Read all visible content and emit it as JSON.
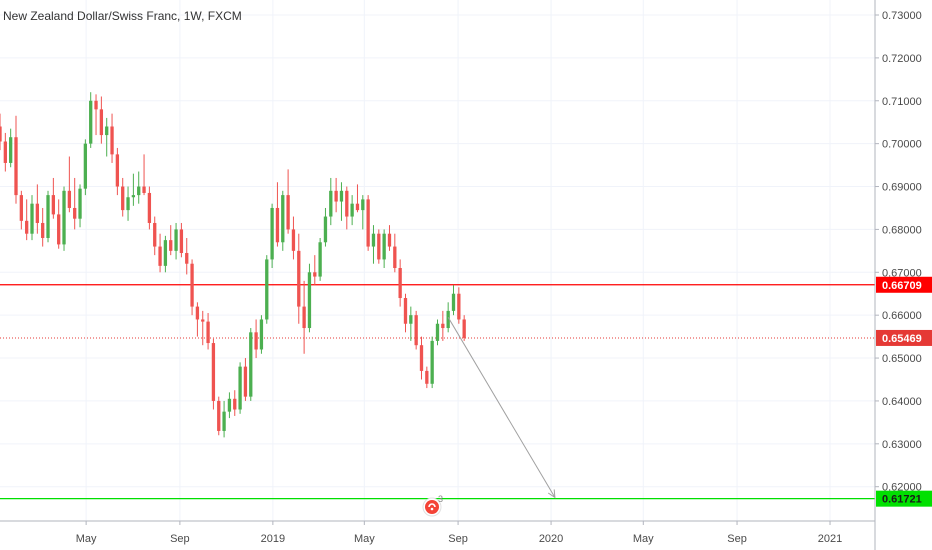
{
  "header": {
    "title": "New Zealand Dollar/Swiss Franc, 1W, FXCM"
  },
  "colors": {
    "up": "#4caf50",
    "down": "#ef5350",
    "resistance": "#ff0000",
    "support": "#00e000",
    "price_line": "#e53935",
    "arrow": "#a0a0a0",
    "grid": "#f0f3fa",
    "text": "#4a4a4a"
  },
  "chart_data": {
    "type": "candlestick",
    "title": "New Zealand Dollar/Swiss Franc, 1W, FXCM",
    "ylim": [
      0.612,
      0.7335
    ],
    "x_range": [
      "2018-01-08",
      "2021-03-01"
    ],
    "y_ticks": [
      "0.73000",
      "0.72000",
      "0.71000",
      "0.70000",
      "0.69000",
      "0.68000",
      "0.67000",
      "0.66000",
      "0.65000",
      "0.64000",
      "0.63000",
      "0.62000"
    ],
    "x_ticks": [
      {
        "label": "May",
        "date": "2018-05-01"
      },
      {
        "label": "Sep",
        "date": "2018-09-01"
      },
      {
        "label": "2019",
        "date": "2019-01-01"
      },
      {
        "label": "May",
        "date": "2019-05-01"
      },
      {
        "label": "Sep",
        "date": "2019-09-01"
      },
      {
        "label": "2020",
        "date": "2020-01-01"
      },
      {
        "label": "May",
        "date": "2020-05-01"
      },
      {
        "label": "Sep",
        "date": "2020-09-01"
      },
      {
        "label": "2021",
        "date": "2021-01-01"
      }
    ],
    "series_start": "2018-01-08",
    "interval": "1W",
    "candles": [
      [
        0.704,
        0.707,
        0.6985,
        0.7005
      ],
      [
        0.7005,
        0.7025,
        0.6935,
        0.6955
      ],
      [
        0.6955,
        0.7035,
        0.6945,
        0.7015
      ],
      [
        0.7015,
        0.7065,
        0.686,
        0.688
      ],
      [
        0.688,
        0.689,
        0.68,
        0.682
      ],
      [
        0.682,
        0.687,
        0.6775,
        0.679
      ],
      [
        0.679,
        0.688,
        0.6775,
        0.686
      ],
      [
        0.686,
        0.6905,
        0.679,
        0.6815
      ],
      [
        0.6815,
        0.685,
        0.676,
        0.678
      ],
      [
        0.678,
        0.689,
        0.677,
        0.688
      ],
      [
        0.688,
        0.692,
        0.6825,
        0.6835
      ],
      [
        0.6835,
        0.687,
        0.6755,
        0.6765
      ],
      [
        0.6765,
        0.69,
        0.675,
        0.689
      ],
      [
        0.689,
        0.697,
        0.684,
        0.685
      ],
      [
        0.685,
        0.692,
        0.68,
        0.6825
      ],
      [
        0.6825,
        0.6905,
        0.6805,
        0.6895
      ],
      [
        0.6895,
        0.701,
        0.688,
        0.7
      ],
      [
        0.7,
        0.712,
        0.699,
        0.71
      ],
      [
        0.71,
        0.7115,
        0.702,
        0.708
      ],
      [
        0.708,
        0.711,
        0.7,
        0.702
      ],
      [
        0.702,
        0.706,
        0.697,
        0.704
      ],
      [
        0.704,
        0.707,
        0.6955,
        0.6975
      ],
      [
        0.6975,
        0.699,
        0.688,
        0.69
      ],
      [
        0.69,
        0.692,
        0.683,
        0.6845
      ],
      [
        0.6845,
        0.69,
        0.682,
        0.6875
      ],
      [
        0.6875,
        0.693,
        0.6855,
        0.688
      ],
      [
        0.688,
        0.6935,
        0.686,
        0.69
      ],
      [
        0.69,
        0.6975,
        0.688,
        0.6885
      ],
      [
        0.6885,
        0.69,
        0.68,
        0.6815
      ],
      [
        0.6815,
        0.683,
        0.674,
        0.676
      ],
      [
        0.676,
        0.679,
        0.67,
        0.6715
      ],
      [
        0.6715,
        0.6785,
        0.67,
        0.6775
      ],
      [
        0.6775,
        0.681,
        0.674,
        0.675
      ],
      [
        0.675,
        0.6815,
        0.673,
        0.68
      ],
      [
        0.68,
        0.6815,
        0.6735,
        0.6745
      ],
      [
        0.6745,
        0.678,
        0.6695,
        0.672
      ],
      [
        0.672,
        0.673,
        0.66,
        0.662
      ],
      [
        0.662,
        0.663,
        0.655,
        0.659
      ],
      [
        0.659,
        0.661,
        0.653,
        0.6585
      ],
      [
        0.6585,
        0.6605,
        0.652,
        0.6535
      ],
      [
        0.6535,
        0.6545,
        0.638,
        0.64
      ],
      [
        0.64,
        0.641,
        0.632,
        0.633
      ],
      [
        0.633,
        0.64,
        0.6315,
        0.6375
      ],
      [
        0.6375,
        0.642,
        0.636,
        0.6405
      ],
      [
        0.6405,
        0.6425,
        0.6365,
        0.638
      ],
      [
        0.638,
        0.649,
        0.637,
        0.648
      ],
      [
        0.648,
        0.65,
        0.64,
        0.641
      ],
      [
        0.641,
        0.657,
        0.64,
        0.656
      ],
      [
        0.656,
        0.659,
        0.65,
        0.652
      ],
      [
        0.652,
        0.66,
        0.651,
        0.659
      ],
      [
        0.659,
        0.674,
        0.658,
        0.673
      ],
      [
        0.673,
        0.686,
        0.671,
        0.685
      ],
      [
        0.685,
        0.691,
        0.676,
        0.677
      ],
      [
        0.677,
        0.689,
        0.675,
        0.688
      ],
      [
        0.688,
        0.694,
        0.679,
        0.68
      ],
      [
        0.68,
        0.683,
        0.673,
        0.675
      ],
      [
        0.675,
        0.679,
        0.658,
        0.662
      ],
      [
        0.662,
        0.668,
        0.651,
        0.657
      ],
      [
        0.657,
        0.672,
        0.656,
        0.67
      ],
      [
        0.67,
        0.674,
        0.667,
        0.669
      ],
      [
        0.669,
        0.678,
        0.668,
        0.677
      ],
      [
        0.677,
        0.685,
        0.676,
        0.683
      ],
      [
        0.683,
        0.692,
        0.681,
        0.689
      ],
      [
        0.689,
        0.692,
        0.684,
        0.6865
      ],
      [
        0.6865,
        0.691,
        0.682,
        0.689
      ],
      [
        0.689,
        0.69,
        0.68,
        0.683
      ],
      [
        0.683,
        0.688,
        0.681,
        0.686
      ],
      [
        0.686,
        0.6905,
        0.684,
        0.6845
      ],
      [
        0.6845,
        0.688,
        0.68,
        0.687
      ],
      [
        0.687,
        0.688,
        0.675,
        0.676
      ],
      [
        0.676,
        0.681,
        0.672,
        0.679
      ],
      [
        0.679,
        0.68,
        0.672,
        0.673
      ],
      [
        0.673,
        0.68,
        0.671,
        0.679
      ],
      [
        0.679,
        0.681,
        0.675,
        0.676
      ],
      [
        0.676,
        0.679,
        0.67,
        0.671
      ],
      [
        0.671,
        0.673,
        0.662,
        0.664
      ],
      [
        0.664,
        0.665,
        0.656,
        0.658
      ],
      [
        0.658,
        0.662,
        0.654,
        0.66
      ],
      [
        0.66,
        0.661,
        0.652,
        0.653
      ],
      [
        0.653,
        0.655,
        0.645,
        0.647
      ],
      [
        0.647,
        0.648,
        0.643,
        0.644
      ],
      [
        0.644,
        0.655,
        0.643,
        0.654
      ],
      [
        0.654,
        0.659,
        0.653,
        0.658
      ],
      [
        0.658,
        0.661,
        0.654,
        0.657
      ],
      [
        0.657,
        0.663,
        0.656,
        0.661
      ],
      [
        0.661,
        0.667,
        0.66,
        0.665
      ],
      [
        0.665,
        0.6665,
        0.658,
        0.659
      ],
      [
        0.659,
        0.66,
        0.654,
        0.6547
      ]
    ],
    "annotations": [
      {
        "type": "horizontal_line",
        "role": "resistance",
        "value": 0.66709,
        "label": "0.66709"
      },
      {
        "type": "horizontal_line",
        "role": "last_price",
        "value": 0.65469,
        "label": "0.65469"
      },
      {
        "type": "horizontal_line",
        "role": "support",
        "value": 0.61721,
        "label": "0.61721"
      },
      {
        "type": "arrow",
        "from": {
          "date": "2019-08-19",
          "price": 0.6595
        },
        "to": {
          "date": "2020-01-06",
          "price": 0.6175
        }
      }
    ]
  }
}
